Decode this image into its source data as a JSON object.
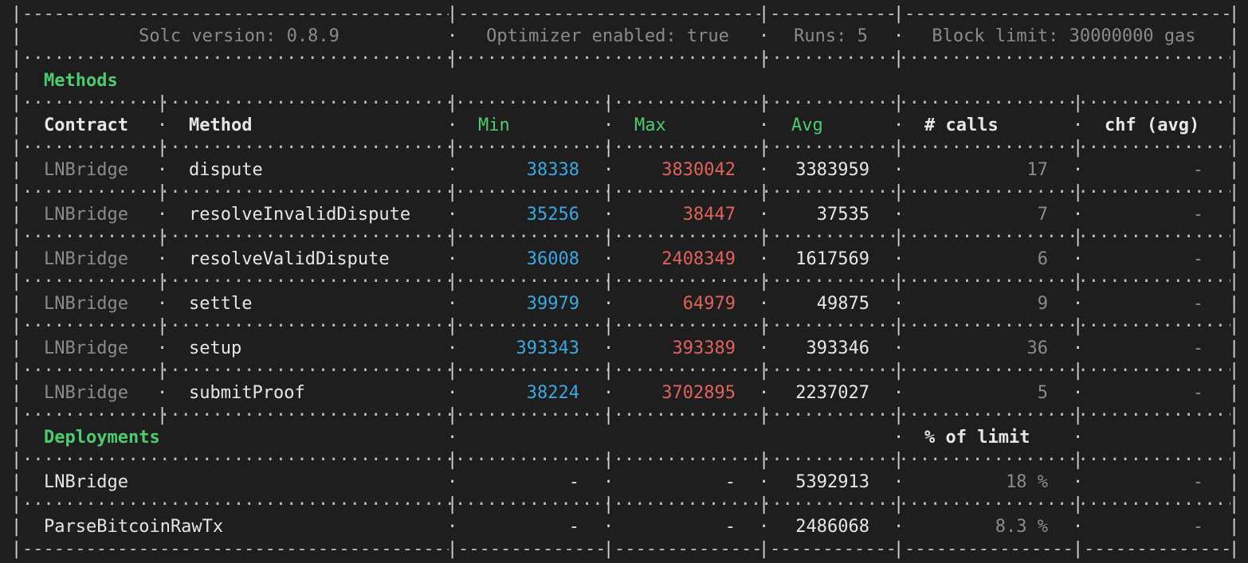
{
  "header": {
    "solc": "Solc version: 0.8.9",
    "optimizer": "Optimizer enabled: true",
    "runs": "Runs: 5",
    "block_limit": "Block limit: 30000000 gas"
  },
  "methods_section": {
    "title": "Methods",
    "columns": {
      "contract": "Contract",
      "method": "Method",
      "min": "Min",
      "max": "Max",
      "avg": "Avg",
      "calls": "# calls",
      "chf": "chf (avg)"
    },
    "rows": [
      {
        "contract": "LNBridge",
        "method": "dispute",
        "min": "38338",
        "max": "3830042",
        "avg": "3383959",
        "calls": "17",
        "chf": "-"
      },
      {
        "contract": "LNBridge",
        "method": "resolveInvalidDispute",
        "min": "35256",
        "max": "38447",
        "avg": "37535",
        "calls": "7",
        "chf": "-"
      },
      {
        "contract": "LNBridge",
        "method": "resolveValidDispute",
        "min": "36008",
        "max": "2408349",
        "avg": "1617569",
        "calls": "6",
        "chf": "-"
      },
      {
        "contract": "LNBridge",
        "method": "settle",
        "min": "39979",
        "max": "64979",
        "avg": "49875",
        "calls": "9",
        "chf": "-"
      },
      {
        "contract": "LNBridge",
        "method": "setup",
        "min": "393343",
        "max": "393389",
        "avg": "393346",
        "calls": "36",
        "chf": "-"
      },
      {
        "contract": "LNBridge",
        "method": "submitProof",
        "min": "38224",
        "max": "3702895",
        "avg": "2237027",
        "calls": "5",
        "chf": "-"
      }
    ]
  },
  "deployments_section": {
    "title": "Deployments",
    "limit_header": "% of limit",
    "rows": [
      {
        "name": "LNBridge",
        "min": "-",
        "max": "-",
        "avg": "5392913",
        "percent": "18 %",
        "chf": "-"
      },
      {
        "name": "ParseBitcoinRawTx",
        "min": "-",
        "max": "-",
        "avg": "2486068",
        "percent": "8.3 %",
        "chf": "-"
      }
    ]
  },
  "colors": {
    "background": "#1e1e1e",
    "green": "#4ecb71",
    "blue": "#3ba7e3",
    "red": "#e0625d",
    "dim": "#8b8b8b"
  }
}
